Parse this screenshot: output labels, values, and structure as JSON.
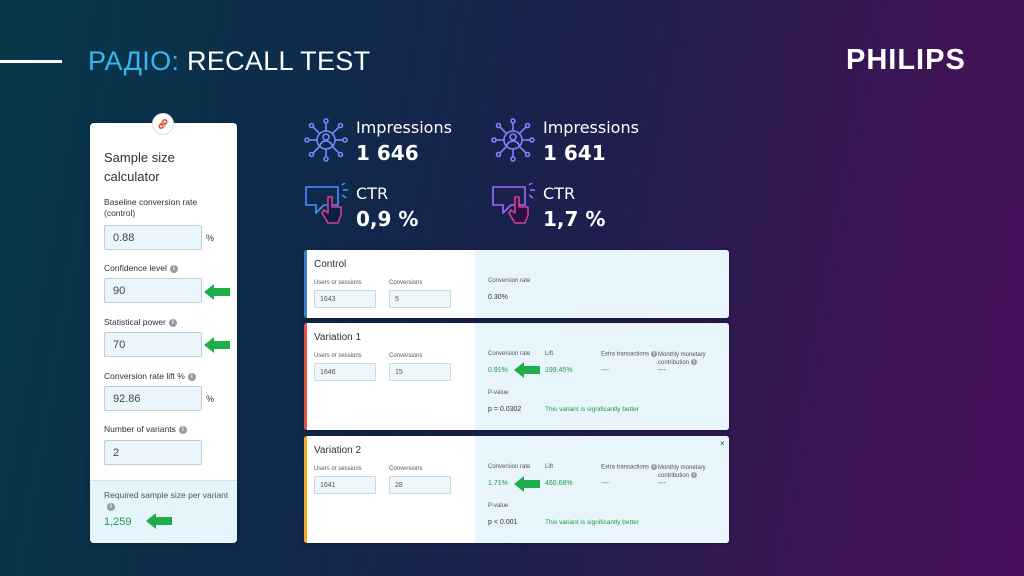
{
  "header": {
    "title_accent": "РАДІО:",
    "title_rest": "RECALL TEST",
    "logo": "PHILIPS"
  },
  "colors": {
    "accent": "#38b6f0",
    "green": "#1e9b44",
    "control_bar": "#3d7cc9",
    "variation1_bar": "#e0533d",
    "variation2_bar": "#f0a81e"
  },
  "calculator": {
    "icon": "link-icon",
    "title": "Sample size calculator",
    "baseline_label": "Baseline conversion rate (control)",
    "baseline_value": "0.88",
    "baseline_unit": "%",
    "confidence_label": "Confidence level",
    "confidence_value": "90",
    "power_label": "Statistical power",
    "power_value": "70",
    "lift_label": "Conversion rate lift %",
    "lift_value": "92.86",
    "lift_unit": "%",
    "variants_label": "Number of variants",
    "variants_value": "2",
    "result_label": "Required sample size per variant",
    "result_value": "1,259"
  },
  "stats": {
    "group_a": {
      "impressions_label": "Impressions",
      "impressions_value": "1 646",
      "ctr_label": "CTR",
      "ctr_value": "0,9 %"
    },
    "group_b": {
      "impressions_label": "Impressions",
      "impressions_value": "1 641",
      "ctr_label": "CTR",
      "ctr_value": "1,7 %"
    }
  },
  "cards": {
    "control": {
      "title": "Control",
      "users_label": "Users or sessions",
      "users_value": "1643",
      "conv_label": "Conversions",
      "conv_value": "5",
      "rate_label": "Conversion rate",
      "rate_value": "0.30%"
    },
    "variation1": {
      "title": "Variation 1",
      "users_label": "Users or sessions",
      "users_value": "1646",
      "conv_label": "Conversions",
      "conv_value": "15",
      "rate_label": "Conversion rate",
      "rate_value": "0.91%",
      "lift_label": "Lift",
      "lift_value": "199.45%",
      "extra_label": "Extra transactions",
      "extra_value": "---",
      "monthly_label": "Monthly monetary contribution",
      "monthly_value": "---",
      "pvalue_label": "P-value",
      "pvalue_value": "p = 0.0302",
      "verdict": "This variant is significantly better"
    },
    "variation2": {
      "title": "Variation 2",
      "close": "×",
      "users_label": "Users or sessions",
      "users_value": "1641",
      "conv_label": "Conversions",
      "conv_value": "28",
      "rate_label": "Conversion rate",
      "rate_value": "1.71%",
      "lift_label": "Lift",
      "lift_value": "460.68%",
      "extra_label": "Extra transactions",
      "extra_value": "---",
      "monthly_label": "Monthly monetary contribution",
      "monthly_value": "---",
      "pvalue_label": "P-value",
      "pvalue_value": "p < 0.001",
      "verdict": "This variant is significantly better"
    }
  }
}
